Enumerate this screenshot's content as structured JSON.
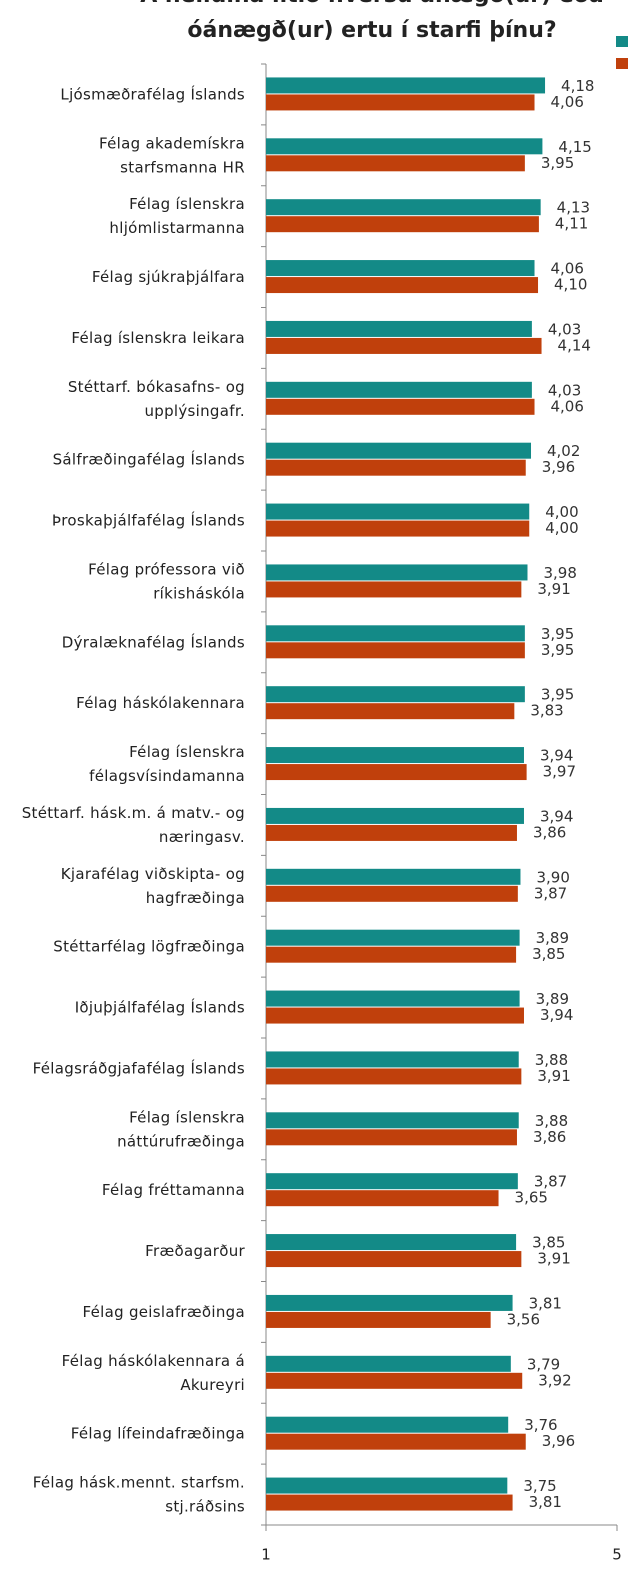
{
  "chart_data": {
    "type": "hbar",
    "title": [
      "Á heildina litið hversu ánægð(ur) eða",
      "óánægð(ur) ertu í starfi þínu?"
    ],
    "categories": [
      [
        "Ljósmæðrafélag Íslands"
      ],
      [
        "Félag akademískra",
        "starfsmanna HR"
      ],
      [
        "Félag íslenskra",
        "hljómlistarmanna"
      ],
      [
        "Félag sjúkraþjálfara"
      ],
      [
        "Félag íslenskra leikara"
      ],
      [
        "Stéttarf. bókasafns- og",
        "upplýsingafr."
      ],
      [
        "Sálfræðingafélag Íslands"
      ],
      [
        "Þroskaþjálfafélag Íslands"
      ],
      [
        "Félag prófessora við",
        "ríkisháskóla"
      ],
      [
        "Dýralæknafélag Íslands"
      ],
      [
        "Félag háskólakennara"
      ],
      [
        "Félag íslenskra",
        "félagsvísindamanna"
      ],
      [
        "Stéttarf. hásk.m. á matv.- og",
        "næringasv."
      ],
      [
        "Kjarafélag viðskipta- og",
        "hagfræðinga"
      ],
      [
        "Stéttarfélag lögfræðinga"
      ],
      [
        "Iðjuþjálfafélag Íslands"
      ],
      [
        "Félagsráðgjafafélag Íslands"
      ],
      [
        "Félag íslenskra",
        "náttúrufræðinga"
      ],
      [
        "Félag fréttamanna"
      ],
      [
        "Fræðagarður"
      ],
      [
        "Félag geislafræðinga"
      ],
      [
        "Félag háskólakennara á",
        "Akureyri"
      ],
      [
        "Félag lífeindafræðinga"
      ],
      [
        "Félag hásk.mennt. starfsm.",
        "stj.ráðsins"
      ]
    ],
    "series": [
      {
        "color": "#138a87",
        "values": [
          4.18,
          4.15,
          4.13,
          4.06,
          4.03,
          4.03,
          4.02,
          4.0,
          3.98,
          3.95,
          3.95,
          3.94,
          3.94,
          3.9,
          3.89,
          3.89,
          3.88,
          3.88,
          3.87,
          3.85,
          3.81,
          3.79,
          3.76,
          3.75
        ],
        "value_labels": [
          "4,18",
          "4,15",
          "4,13",
          "4,06",
          "4,03",
          "4,03",
          "4,02",
          "4,00",
          "3,98",
          "3,95",
          "3,95",
          "3,94",
          "3,94",
          "3,90",
          "3,89",
          "3,89",
          "3,88",
          "3,88",
          "3,87",
          "3,85",
          "3,81",
          "3,79",
          "3,76",
          "3,75"
        ]
      },
      {
        "color": "#c0400c",
        "values": [
          4.06,
          3.95,
          4.11,
          4.1,
          4.14,
          4.06,
          3.96,
          4.0,
          3.91,
          3.95,
          3.83,
          3.97,
          3.86,
          3.87,
          3.85,
          3.94,
          3.91,
          3.86,
          3.65,
          3.91,
          3.56,
          3.92,
          3.96,
          3.81
        ],
        "value_labels": [
          "4,06",
          "3,95",
          "4,11",
          "4,10",
          "4,14",
          "4,06",
          "3,96",
          "4,00",
          "3,91",
          "3,95",
          "3,83",
          "3,97",
          "3,86",
          "3,87",
          "3,85",
          "3,94",
          "3,91",
          "3,86",
          "3,65",
          "3,91",
          "3,56",
          "3,92",
          "3,96",
          "3,81"
        ]
      }
    ],
    "xlim": [
      1,
      5
    ],
    "xticks": [
      1,
      5
    ]
  }
}
